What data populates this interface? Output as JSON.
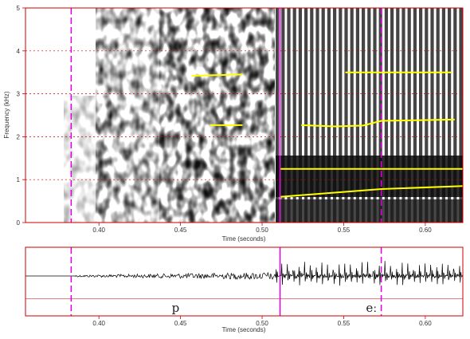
{
  "spectrogram": {
    "y_axis_label": "Frequency (kHz)",
    "x_axis_label": "Time (seconds)",
    "x_range": [
      0.355,
      0.623
    ],
    "y_range": [
      0,
      5
    ],
    "y_ticks": [
      "0",
      "1",
      "2",
      "3",
      "4",
      "5"
    ],
    "x_ticks": [
      "0.40",
      "0.45",
      "0.50",
      "0.55",
      "0.60"
    ],
    "x_tick_values": [
      0.4,
      0.45,
      0.5,
      0.55,
      0.6
    ],
    "frame_color": "#cc0000",
    "marker_color": "#e000e0",
    "formant_color": "#ffff00",
    "cursor_dashed_times": [
      0.383,
      0.573
    ],
    "cursor_solid_times": [
      0.511
    ],
    "formant_tracks": [
      {
        "points": [
          [
            0.457,
            3.42
          ],
          [
            0.488,
            3.45
          ]
        ]
      },
      {
        "points": [
          [
            0.468,
            2.27
          ],
          [
            0.488,
            2.27
          ]
        ]
      },
      {
        "points": [
          [
            0.524,
            2.27
          ],
          [
            0.545,
            2.24
          ],
          [
            0.562,
            2.26
          ],
          [
            0.573,
            2.37
          ],
          [
            0.618,
            2.4
          ]
        ]
      },
      {
        "points": [
          [
            0.551,
            3.5
          ],
          [
            0.616,
            3.5
          ]
        ]
      },
      {
        "points": [
          [
            0.511,
            1.25
          ],
          [
            0.623,
            1.25
          ]
        ]
      },
      {
        "points": [
          [
            0.511,
            0.6
          ],
          [
            0.573,
            0.78
          ],
          [
            0.623,
            0.85
          ]
        ]
      }
    ]
  },
  "waveform": {
    "x_axis_label": "Time (seconds)",
    "x_ticks": [
      "0.40",
      "0.45",
      "0.50",
      "0.55",
      "0.60"
    ],
    "segments": [
      {
        "label": "p",
        "start": 0.383,
        "end": 0.511
      },
      {
        "label": "eː",
        "start": 0.511,
        "end": 0.623
      }
    ]
  }
}
